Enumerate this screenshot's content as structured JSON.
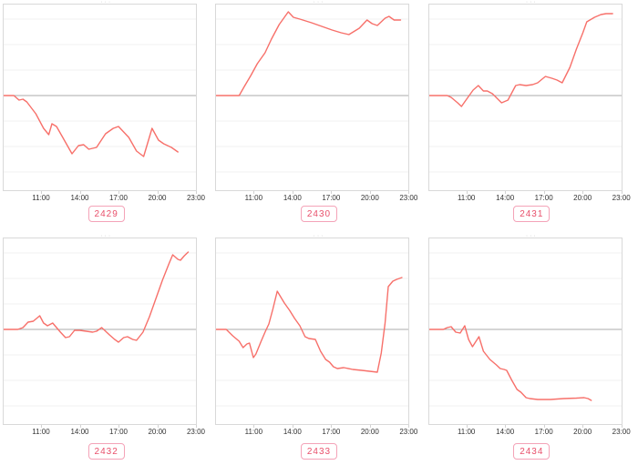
{
  "shared": {
    "title_remnant": "···",
    "x_tick_labels": [
      "11:00",
      "14:00",
      "17:00",
      "20:00",
      "23:00"
    ],
    "x_tick_hours": [
      11,
      14,
      17,
      20,
      23
    ]
  },
  "style": {
    "line_color": "#f7706a",
    "zero_line_color": "#ababab",
    "grid_color": "#f0f0f0",
    "frame_border_color": "#d9d9d9",
    "tick_text_color": "#333333",
    "tag_text_color": "#e8506b",
    "tag_border_color": "#f4a3b8"
  },
  "chart_data": [
    {
      "type": "line",
      "title": "2429",
      "xlabel": "",
      "ylabel": "",
      "x_tick_labels": [
        "11:00",
        "14:00",
        "17:00",
        "20:00",
        "23:00"
      ],
      "xlim_hours": [
        8.1,
        23.1
      ],
      "ylim": [
        -1.04,
        1.0
      ],
      "zero_line": true,
      "grid": true,
      "points": [
        [
          8.1,
          0
        ],
        [
          8.9,
          0
        ],
        [
          9.3,
          -0.05
        ],
        [
          9.6,
          -0.04
        ],
        [
          9.9,
          -0.07
        ],
        [
          10.6,
          -0.2
        ],
        [
          11.2,
          -0.36
        ],
        [
          11.6,
          -0.43
        ],
        [
          11.85,
          -0.31
        ],
        [
          12.2,
          -0.34
        ],
        [
          12.6,
          -0.44
        ],
        [
          13.4,
          -0.64
        ],
        [
          13.9,
          -0.55
        ],
        [
          14.3,
          -0.54
        ],
        [
          14.7,
          -0.59
        ],
        [
          15.3,
          -0.57
        ],
        [
          16.0,
          -0.42
        ],
        [
          16.6,
          -0.36
        ],
        [
          17.0,
          -0.34
        ],
        [
          17.8,
          -0.46
        ],
        [
          18.4,
          -0.61
        ],
        [
          18.95,
          -0.67
        ],
        [
          19.6,
          -0.36
        ],
        [
          20.1,
          -0.49
        ],
        [
          20.5,
          -0.53
        ],
        [
          21.1,
          -0.57
        ],
        [
          21.6,
          -0.62
        ]
      ]
    },
    {
      "type": "line",
      "title": "2430",
      "xlabel": "",
      "ylabel": "",
      "x_tick_labels": [
        "11:00",
        "14:00",
        "17:00",
        "20:00",
        "23:00"
      ],
      "xlim_hours": [
        8.1,
        23.1
      ],
      "ylim": [
        -1.04,
        1.0
      ],
      "zero_line": true,
      "grid": true,
      "points": [
        [
          8.1,
          0
        ],
        [
          9.9,
          0
        ],
        [
          10.3,
          0.1
        ],
        [
          10.8,
          0.22
        ],
        [
          11.3,
          0.35
        ],
        [
          11.9,
          0.47
        ],
        [
          12.4,
          0.62
        ],
        [
          13.0,
          0.78
        ],
        [
          13.7,
          0.92
        ],
        [
          14.1,
          0.86
        ],
        [
          14.6,
          0.84
        ],
        [
          15.5,
          0.8
        ],
        [
          16.3,
          0.76
        ],
        [
          17.1,
          0.72
        ],
        [
          17.8,
          0.69
        ],
        [
          18.4,
          0.67
        ],
        [
          19.2,
          0.74
        ],
        [
          19.8,
          0.83
        ],
        [
          20.2,
          0.79
        ],
        [
          20.6,
          0.77
        ],
        [
          21.2,
          0.85
        ],
        [
          21.5,
          0.87
        ],
        [
          21.9,
          0.83
        ],
        [
          22.4,
          0.83
        ]
      ]
    },
    {
      "type": "line",
      "title": "2431",
      "xlabel": "",
      "ylabel": "",
      "x_tick_labels": [
        "11:00",
        "14:00",
        "17:00",
        "20:00",
        "23:00"
      ],
      "xlim_hours": [
        8.1,
        23.1
      ],
      "ylim": [
        -1.04,
        1.0
      ],
      "zero_line": true,
      "grid": true,
      "points": [
        [
          8.1,
          0
        ],
        [
          9.5,
          0
        ],
        [
          9.8,
          -0.02
        ],
        [
          10.3,
          -0.08
        ],
        [
          10.6,
          -0.12
        ],
        [
          11.2,
          0.0
        ],
        [
          11.5,
          0.06
        ],
        [
          11.9,
          0.11
        ],
        [
          12.3,
          0.05
        ],
        [
          12.6,
          0.05
        ],
        [
          13.0,
          0.02
        ],
        [
          13.7,
          -0.08
        ],
        [
          14.2,
          -0.05
        ],
        [
          14.8,
          0.11
        ],
        [
          15.1,
          0.12
        ],
        [
          15.6,
          0.11
        ],
        [
          16.1,
          0.12
        ],
        [
          16.5,
          0.14
        ],
        [
          17.1,
          0.21
        ],
        [
          17.6,
          0.19
        ],
        [
          18.0,
          0.17
        ],
        [
          18.4,
          0.14
        ],
        [
          19.0,
          0.31
        ],
        [
          19.5,
          0.51
        ],
        [
          20.0,
          0.69
        ],
        [
          20.3,
          0.81
        ],
        [
          20.9,
          0.86
        ],
        [
          21.4,
          0.89
        ],
        [
          21.8,
          0.9
        ],
        [
          22.3,
          0.9
        ]
      ]
    },
    {
      "type": "line",
      "title": "2432",
      "xlabel": "",
      "ylabel": "",
      "x_tick_labels": [
        "11:00",
        "14:00",
        "17:00",
        "20:00",
        "23:00"
      ],
      "xlim_hours": [
        8.1,
        23.1
      ],
      "ylim": [
        -1.04,
        1.0
      ],
      "zero_line": true,
      "grid": true,
      "points": [
        [
          8.1,
          0
        ],
        [
          9.2,
          0
        ],
        [
          9.6,
          0.02
        ],
        [
          10.0,
          0.08
        ],
        [
          10.4,
          0.09
        ],
        [
          10.9,
          0.15
        ],
        [
          11.2,
          0.07
        ],
        [
          11.5,
          0.04
        ],
        [
          11.9,
          0.07
        ],
        [
          12.5,
          -0.03
        ],
        [
          12.9,
          -0.09
        ],
        [
          13.2,
          -0.08
        ],
        [
          13.6,
          -0.01
        ],
        [
          14.0,
          -0.01
        ],
        [
          14.5,
          -0.02
        ],
        [
          15.0,
          -0.03
        ],
        [
          15.3,
          -0.02
        ],
        [
          15.7,
          0.02
        ],
        [
          16.3,
          -0.06
        ],
        [
          16.7,
          -0.11
        ],
        [
          17.0,
          -0.14
        ],
        [
          17.4,
          -0.09
        ],
        [
          17.7,
          -0.08
        ],
        [
          18.1,
          -0.11
        ],
        [
          18.4,
          -0.12
        ],
        [
          18.9,
          -0.03
        ],
        [
          19.4,
          0.14
        ],
        [
          19.9,
          0.34
        ],
        [
          20.4,
          0.54
        ],
        [
          20.9,
          0.72
        ],
        [
          21.2,
          0.82
        ],
        [
          21.6,
          0.77
        ],
        [
          21.8,
          0.76
        ],
        [
          22.1,
          0.81
        ],
        [
          22.4,
          0.85
        ]
      ]
    },
    {
      "type": "line",
      "title": "2433",
      "xlabel": "",
      "ylabel": "",
      "x_tick_labels": [
        "11:00",
        "14:00",
        "17:00",
        "20:00",
        "23:00"
      ],
      "xlim_hours": [
        8.1,
        23.1
      ],
      "ylim": [
        -1.04,
        1.0
      ],
      "zero_line": true,
      "grid": true,
      "points": [
        [
          8.1,
          0
        ],
        [
          8.9,
          0
        ],
        [
          9.4,
          -0.07
        ],
        [
          9.9,
          -0.13
        ],
        [
          10.2,
          -0.2
        ],
        [
          10.5,
          -0.16
        ],
        [
          10.7,
          -0.15
        ],
        [
          11.0,
          -0.31
        ],
        [
          11.2,
          -0.27
        ],
        [
          11.6,
          -0.13
        ],
        [
          11.9,
          -0.03
        ],
        [
          12.2,
          0.06
        ],
        [
          12.5,
          0.22
        ],
        [
          12.85,
          0.42
        ],
        [
          13.4,
          0.29
        ],
        [
          13.8,
          0.21
        ],
        [
          14.2,
          0.12
        ],
        [
          14.6,
          0.04
        ],
        [
          15.0,
          -0.08
        ],
        [
          15.3,
          -0.1
        ],
        [
          15.8,
          -0.11
        ],
        [
          16.2,
          -0.24
        ],
        [
          16.6,
          -0.33
        ],
        [
          16.9,
          -0.36
        ],
        [
          17.2,
          -0.41
        ],
        [
          17.5,
          -0.43
        ],
        [
          18.0,
          -0.42
        ],
        [
          18.7,
          -0.44
        ],
        [
          19.4,
          -0.45
        ],
        [
          20.0,
          -0.46
        ],
        [
          20.6,
          -0.47
        ],
        [
          20.9,
          -0.26
        ],
        [
          21.2,
          0.07
        ],
        [
          21.45,
          0.47
        ],
        [
          21.8,
          0.53
        ],
        [
          22.1,
          0.55
        ],
        [
          22.5,
          0.57
        ]
      ]
    },
    {
      "type": "line",
      "title": "2434",
      "xlabel": "",
      "ylabel": "",
      "x_tick_labels": [
        "11:00",
        "14:00",
        "17:00",
        "20:00",
        "23:00"
      ],
      "xlim_hours": [
        8.1,
        23.1
      ],
      "ylim": [
        -1.04,
        1.0
      ],
      "zero_line": true,
      "grid": true,
      "points": [
        [
          8.1,
          0
        ],
        [
          9.2,
          0
        ],
        [
          9.5,
          0.02
        ],
        [
          9.8,
          0.03
        ],
        [
          10.15,
          -0.03
        ],
        [
          10.5,
          -0.04
        ],
        [
          10.85,
          0.04
        ],
        [
          11.15,
          -0.11
        ],
        [
          11.45,
          -0.19
        ],
        [
          11.95,
          -0.08
        ],
        [
          12.3,
          -0.24
        ],
        [
          12.8,
          -0.33
        ],
        [
          13.3,
          -0.39
        ],
        [
          13.6,
          -0.43
        ],
        [
          13.9,
          -0.44
        ],
        [
          14.1,
          -0.45
        ],
        [
          14.5,
          -0.56
        ],
        [
          14.9,
          -0.66
        ],
        [
          15.2,
          -0.69
        ],
        [
          15.6,
          -0.75
        ],
        [
          15.9,
          -0.76
        ],
        [
          16.5,
          -0.77
        ],
        [
          17.5,
          -0.77
        ],
        [
          18.5,
          -0.76
        ],
        [
          19.5,
          -0.755
        ],
        [
          20.1,
          -0.75
        ],
        [
          20.4,
          -0.76
        ],
        [
          20.65,
          -0.78
        ]
      ]
    }
  ]
}
